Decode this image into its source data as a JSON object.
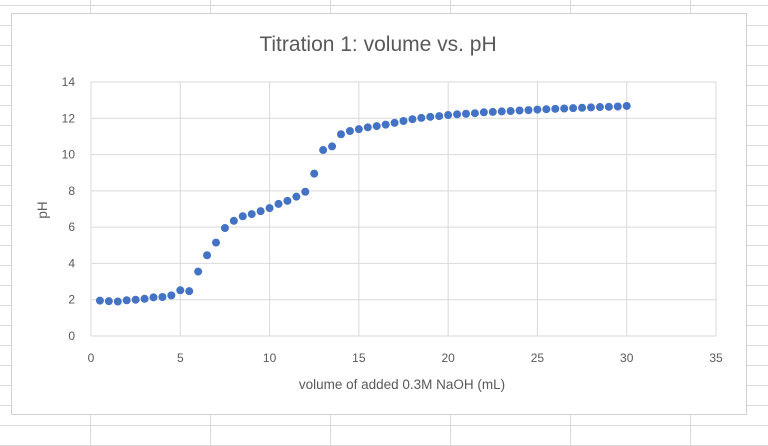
{
  "chart_data": {
    "type": "scatter",
    "title": "Titration 1: volume vs. pH",
    "xlabel": "volume of added 0.3M NaOH (mL)",
    "ylabel": "pH",
    "xlim": [
      0,
      35
    ],
    "ylim": [
      0,
      14
    ],
    "xticks": [
      "0",
      "5",
      "10",
      "15",
      "20",
      "25",
      "30",
      "35"
    ],
    "yticks": [
      "0",
      "2",
      "4",
      "6",
      "8",
      "10",
      "12",
      "14"
    ],
    "grid": true,
    "legend": "none",
    "marker_color": "#4472C4",
    "x": [
      0.5,
      1.0,
      1.5,
      2.0,
      2.5,
      3.0,
      3.5,
      4.0,
      4.5,
      5.0,
      5.5,
      6.0,
      6.5,
      7.0,
      7.5,
      8.0,
      8.5,
      9.0,
      9.5,
      10.0,
      10.5,
      11.0,
      11.5,
      12.0,
      12.5,
      13.0,
      13.5,
      14.0,
      14.5,
      15.0,
      15.5,
      16.0,
      16.5,
      17.0,
      17.5,
      18.0,
      18.5,
      19.0,
      19.5,
      20.0,
      20.5,
      21.0,
      21.5,
      22.0,
      22.5,
      23.0,
      23.5,
      24.0,
      24.5,
      25.0,
      25.5,
      26.0,
      26.5,
      27.0,
      27.5,
      28.0,
      28.5,
      29.0,
      29.5,
      30.0
    ],
    "y": [
      1.95,
      1.92,
      1.9,
      1.97,
      2.0,
      2.05,
      2.13,
      2.15,
      2.24,
      2.52,
      2.47,
      3.55,
      4.45,
      5.15,
      5.95,
      6.35,
      6.6,
      6.72,
      6.88,
      7.05,
      7.28,
      7.45,
      7.68,
      7.95,
      8.95,
      10.25,
      10.45,
      11.12,
      11.3,
      11.4,
      11.5,
      11.57,
      11.65,
      11.75,
      11.85,
      11.95,
      12.02,
      12.08,
      12.12,
      12.18,
      12.22,
      12.25,
      12.28,
      12.33,
      12.35,
      12.38,
      12.4,
      12.43,
      12.45,
      12.48,
      12.5,
      12.52,
      12.54,
      12.56,
      12.58,
      12.6,
      12.62,
      12.63,
      12.65,
      12.68
    ]
  }
}
